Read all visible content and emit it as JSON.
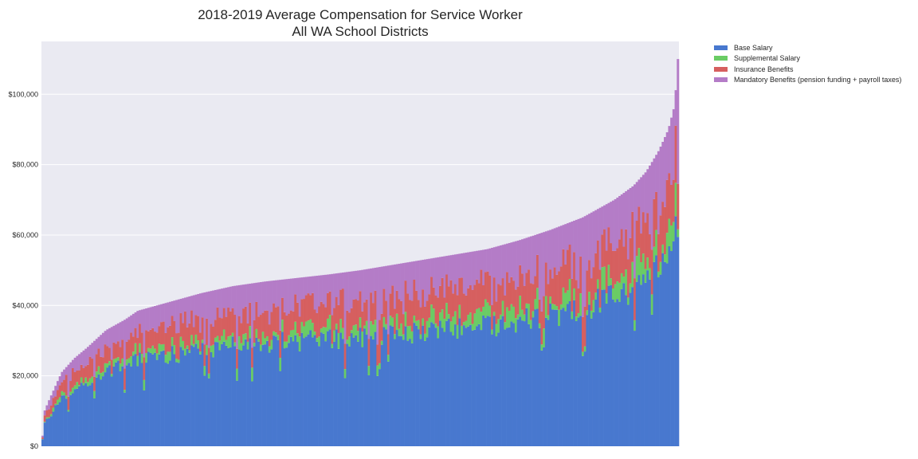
{
  "chart_data": {
    "type": "bar",
    "stacked": true,
    "title_line1": "2018-2019 Average Compensation for Service Worker",
    "title_line2": "All WA School Districts",
    "xlabel": "",
    "ylabel": "",
    "ylim": [
      0,
      115000
    ],
    "yticks": [
      0,
      20000,
      40000,
      60000,
      80000,
      100000
    ],
    "ytick_labels": [
      "$0",
      "$20,000",
      "$40,000",
      "$60,000",
      "$80,000",
      "$100,000"
    ],
    "grid": true,
    "legend_position": "outside-top-right",
    "background": "#eaeaf2",
    "n_districts": 295,
    "series": [
      {
        "name": "Base Salary",
        "color": "#4878cf"
      },
      {
        "name": "Supplemental Salary",
        "color": "#6acc65"
      },
      {
        "name": "Insurance Benefits",
        "color": "#d65f5f"
      },
      {
        "name": "Mandatory Benefits (pension funding + payroll taxes)",
        "color": "#b47cc7"
      }
    ],
    "total_profile": [
      [
        0,
        3000
      ],
      [
        0.003,
        10000
      ],
      [
        0.01,
        13000
      ],
      [
        0.03,
        21000
      ],
      [
        0.05,
        25000
      ],
      [
        0.07,
        28000
      ],
      [
        0.1,
        33000
      ],
      [
        0.13,
        36000
      ],
      [
        0.15,
        38500
      ],
      [
        0.2,
        41000
      ],
      [
        0.25,
        43500
      ],
      [
        0.3,
        45500
      ],
      [
        0.35,
        46800
      ],
      [
        0.4,
        47800
      ],
      [
        0.45,
        48800
      ],
      [
        0.5,
        50000
      ],
      [
        0.55,
        51500
      ],
      [
        0.6,
        53000
      ],
      [
        0.65,
        54500
      ],
      [
        0.7,
        56000
      ],
      [
        0.75,
        58500
      ],
      [
        0.8,
        61500
      ],
      [
        0.85,
        65000
      ],
      [
        0.9,
        70000
      ],
      [
        0.93,
        74000
      ],
      [
        0.95,
        78000
      ],
      [
        0.97,
        84000
      ],
      [
        0.985,
        90000
      ],
      [
        0.995,
        97000
      ],
      [
        1.0,
        110000
      ]
    ],
    "fractions": {
      "base": [
        0.64,
        0.6
      ],
      "supplemental": [
        0.04,
        0.06
      ],
      "insurance": [
        0.15,
        0.14
      ],
      "mandatory": [
        0.17,
        0.2
      ]
    },
    "notes": "Per-district values are approximated: bars sorted ascending by total compensation from ~$3,000 to ~$110,000."
  }
}
